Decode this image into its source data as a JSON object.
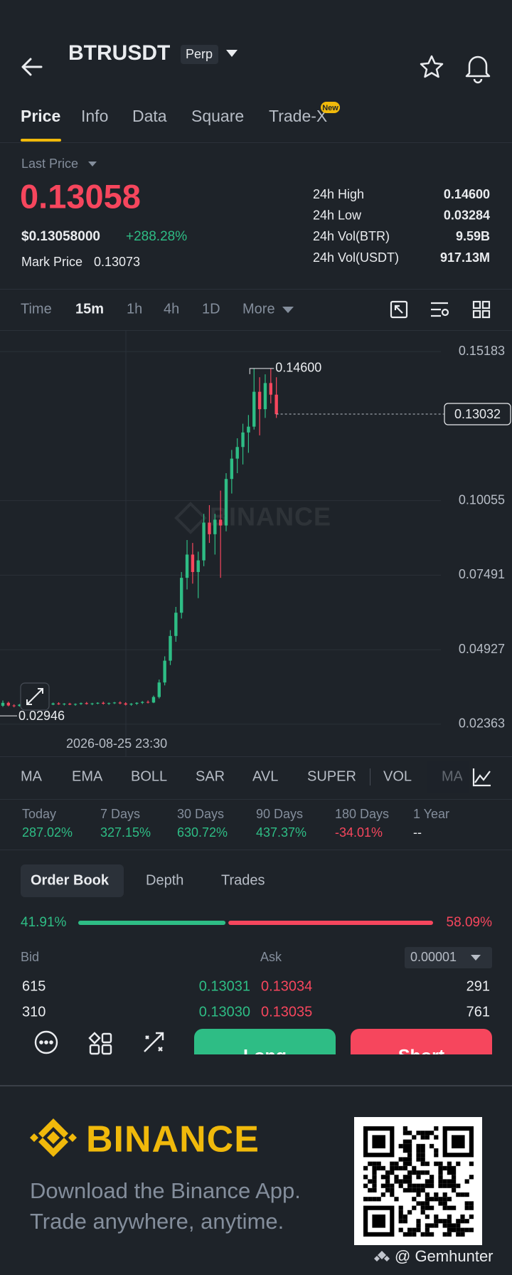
{
  "header": {
    "symbol": "BTRUSDT",
    "badge": "Perp"
  },
  "tabs": [
    "Price",
    "Info",
    "Data",
    "Square",
    "Trade-X"
  ],
  "tab_badge": "New",
  "summary": {
    "last_price_label": "Last Price",
    "last_price": "0.13058",
    "usd_price": "$0.13058000",
    "change": "+288.28%",
    "mark_price_label": "Mark Price",
    "mark_price": "0.13073",
    "stats": [
      {
        "label": "24h High",
        "value": "0.14600"
      },
      {
        "label": "24h Low",
        "value": "0.03284"
      },
      {
        "label": "24h Vol(BTR)",
        "value": "9.59B"
      },
      {
        "label": "24h Vol(USDT)",
        "value": "917.13M"
      }
    ]
  },
  "intervals": [
    "Time",
    "15m",
    "1h",
    "4h",
    "1D",
    "More"
  ],
  "chart": {
    "type": "candlestick",
    "watermark": "BINANCE",
    "ylim": [
      0.0126,
      0.1592
    ],
    "yticks": [
      0.15183,
      0.10055,
      0.07491,
      0.04927,
      0.02363
    ],
    "high_label": {
      "value": 0.146,
      "label": "0.14600"
    },
    "low_label": 0.02946,
    "last_line": 0.13032,
    "crosshair_time": "2026-08-25 23:30",
    "up_color": "#2ebd85",
    "down_color": "#f6465d",
    "open": [
      0.03,
      0.031,
      0.0301,
      0.0299,
      0.0304,
      0.0302,
      0.0305,
      0.0303,
      0.03,
      0.0304,
      0.0308,
      0.0305,
      0.0307,
      0.0304,
      0.0306,
      0.0309,
      0.0306,
      0.0308,
      0.031,
      0.0307,
      0.0309,
      0.0311,
      0.0308,
      0.0304,
      0.0307,
      0.031,
      0.0313,
      0.0311,
      0.033,
      0.038,
      0.0455,
      0.054,
      0.062,
      0.074,
      0.082,
      0.076,
      0.08,
      0.093,
      0.089,
      0.094,
      0.092,
      0.108,
      0.115,
      0.119,
      0.124,
      0.126,
      0.138,
      0.132,
      0.141,
      0.137
    ],
    "high": [
      0.0318,
      0.0314,
      0.0305,
      0.0306,
      0.0309,
      0.0307,
      0.031,
      0.0306,
      0.0305,
      0.0311,
      0.0312,
      0.0309,
      0.031,
      0.0308,
      0.0311,
      0.0313,
      0.031,
      0.0312,
      0.0314,
      0.0311,
      0.0313,
      0.0315,
      0.0312,
      0.0309,
      0.0312,
      0.0316,
      0.0318,
      0.0335,
      0.039,
      0.047,
      0.056,
      0.064,
      0.076,
      0.087,
      0.086,
      0.083,
      0.096,
      0.099,
      0.096,
      0.104,
      0.11,
      0.118,
      0.122,
      0.127,
      0.13,
      0.146,
      0.143,
      0.144,
      0.146,
      0.143
    ],
    "low": [
      0.0296,
      0.0298,
      0.02946,
      0.0297,
      0.03,
      0.0299,
      0.0301,
      0.0298,
      0.0297,
      0.0302,
      0.0303,
      0.0301,
      0.0302,
      0.03,
      0.0303,
      0.0304,
      0.0302,
      0.0305,
      0.0304,
      0.0303,
      0.0306,
      0.0305,
      0.0301,
      0.03,
      0.0303,
      0.0306,
      0.0308,
      0.0309,
      0.0325,
      0.037,
      0.044,
      0.052,
      0.06,
      0.07,
      0.072,
      0.067,
      0.078,
      0.086,
      0.082,
      0.074,
      0.09,
      0.103,
      0.11,
      0.113,
      0.117,
      0.125,
      0.123,
      0.129,
      0.134,
      0.129
    ],
    "close": [
      0.031,
      0.0301,
      0.0299,
      0.0304,
      0.0302,
      0.0305,
      0.0303,
      0.03,
      0.0304,
      0.0308,
      0.0305,
      0.0307,
      0.0304,
      0.0306,
      0.0309,
      0.0306,
      0.0308,
      0.031,
      0.0307,
      0.0309,
      0.0311,
      0.0308,
      0.0304,
      0.0307,
      0.031,
      0.0313,
      0.0311,
      0.033,
      0.038,
      0.0455,
      0.054,
      0.062,
      0.074,
      0.082,
      0.076,
      0.08,
      0.093,
      0.089,
      0.094,
      0.092,
      0.108,
      0.115,
      0.119,
      0.124,
      0.126,
      0.138,
      0.132,
      0.141,
      0.137,
      0.1303
    ]
  },
  "indicators": [
    "MA",
    "EMA",
    "BOLL",
    "SAR",
    "AVL",
    "SUPER",
    "VOL",
    "MACD"
  ],
  "performance": [
    {
      "label": "Today",
      "value": "287.02%",
      "color": "#2ebd85"
    },
    {
      "label": "7 Days",
      "value": "327.15%",
      "color": "#2ebd85"
    },
    {
      "label": "30 Days",
      "value": "630.72%",
      "color": "#2ebd85"
    },
    {
      "label": "90 Days",
      "value": "437.37%",
      "color": "#2ebd85"
    },
    {
      "label": "180 Days",
      "value": "-34.01%",
      "color": "#f6465d"
    },
    {
      "label": "1 Year",
      "value": "--",
      "color": "#eaecef"
    }
  ],
  "order_book": {
    "tabs": [
      "Order Book",
      "Depth",
      "Trades"
    ],
    "bid_ratio": {
      "value": 41.91,
      "label": "41.91%"
    },
    "ask_ratio": {
      "value": 58.09,
      "label": "58.09%"
    },
    "bid_label": "Bid",
    "ask_label": "Ask",
    "precision": "0.00001",
    "rows": [
      [
        "615",
        "0.13031",
        "0.13034",
        "291"
      ],
      [
        "310",
        "0.13030",
        "0.13035",
        "761"
      ]
    ]
  },
  "actions": {
    "long": "Long",
    "short": "Short"
  },
  "footer": {
    "brand": "BINANCE",
    "line1": "Download the Binance App.",
    "line2": "Trade anywhere, anytime.",
    "credit": "@ Gemhunter"
  }
}
